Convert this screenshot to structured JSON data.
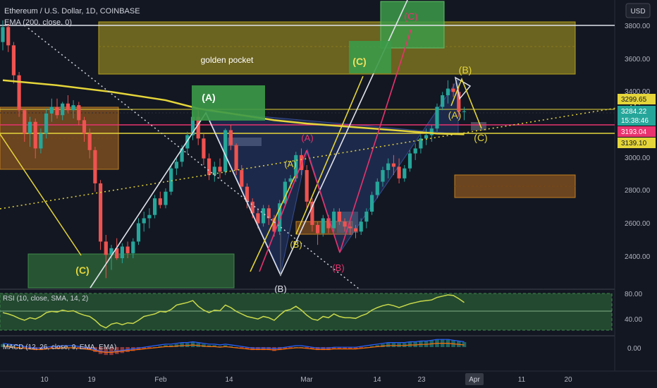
{
  "header": {
    "symbol_title": "Ethereum / U.S. Dollar, 1D, COINBASE",
    "indicator_ema": "EMA (200, close, 0)",
    "currency_button": "USD"
  },
  "colors": {
    "background": "#131722",
    "up": "#26a69a",
    "down": "#ef5350",
    "ema": "#e5d53a",
    "fib_yellow": "#d8c63b"
  },
  "annotations": {
    "golden_pocket": "golden pocket",
    "A_green": "(A)",
    "C_green": "(C)",
    "C_pink_top": "(C)",
    "A_pink": "(A)",
    "A_yellow": "(A)",
    "B_yellow_mid": "(B)",
    "B_pink": "(B)",
    "B_white_bottom": "(B)",
    "C_yellow_left": "(C)",
    "B_yellow_top": "(B)",
    "A_yellow_right": "(A)",
    "C_yellow_right": "(C)"
  },
  "price_axis": {
    "ticks": [
      "3800.00",
      "3600.00",
      "3400.00",
      "3000.00",
      "2800.00",
      "2600.00",
      "2400.00"
    ],
    "badges": {
      "p3299": "3299.65",
      "p3284": "3284.22",
      "countdown": "15:38:46",
      "p3193": "3193.04",
      "p3139": "3139.10"
    }
  },
  "time_axis": [
    "10",
    "19",
    "Feb",
    "14",
    "Mar",
    "14",
    "23",
    "Apr",
    "11",
    "20"
  ],
  "rsi": {
    "label": "RSI (10, close, SMA, 14, 2)",
    "ticks": [
      "80.00",
      "40.00"
    ]
  },
  "macd": {
    "label": "MACD (12, 26, close, 9, EMA, EMA)",
    "ticks": [
      "0.00"
    ]
  },
  "chart_data": {
    "type": "candlestick",
    "title": "Ethereum / U.S. Dollar, 1D, COINBASE",
    "y_axis_range": [
      2250,
      3900
    ],
    "candles": [
      {
        "o": 3700,
        "h": 3830,
        "l": 3650,
        "c": 3790
      },
      {
        "o": 3790,
        "h": 3810,
        "l": 3640,
        "c": 3680
      },
      {
        "o": 3680,
        "h": 3700,
        "l": 3450,
        "c": 3500
      },
      {
        "o": 3500,
        "h": 3520,
        "l": 3250,
        "c": 3290
      },
      {
        "o": 3290,
        "h": 3300,
        "l": 3100,
        "c": 3150
      },
      {
        "o": 3150,
        "h": 3250,
        "l": 3070,
        "c": 3220
      },
      {
        "o": 3220,
        "h": 3240,
        "l": 3000,
        "c": 3060
      },
      {
        "o": 3060,
        "h": 3180,
        "l": 3030,
        "c": 3150
      },
      {
        "o": 3150,
        "h": 3300,
        "l": 3120,
        "c": 3270
      },
      {
        "o": 3270,
        "h": 3360,
        "l": 3220,
        "c": 3310
      },
      {
        "o": 3310,
        "h": 3360,
        "l": 3240,
        "c": 3260
      },
      {
        "o": 3260,
        "h": 3340,
        "l": 3230,
        "c": 3330
      },
      {
        "o": 3330,
        "h": 3380,
        "l": 3270,
        "c": 3290
      },
      {
        "o": 3290,
        "h": 3350,
        "l": 3240,
        "c": 3320
      },
      {
        "o": 3320,
        "h": 3340,
        "l": 3200,
        "c": 3230
      },
      {
        "o": 3230,
        "h": 3250,
        "l": 3100,
        "c": 3150
      },
      {
        "o": 3150,
        "h": 3180,
        "l": 3000,
        "c": 3050
      },
      {
        "o": 3050,
        "h": 3070,
        "l": 2800,
        "c": 2850
      },
      {
        "o": 2850,
        "h": 2870,
        "l": 2450,
        "c": 2500
      },
      {
        "o": 2500,
        "h": 2540,
        "l": 2280,
        "c": 2420
      },
      {
        "o": 2420,
        "h": 2480,
        "l": 2330,
        "c": 2460
      },
      {
        "o": 2460,
        "h": 2520,
        "l": 2390,
        "c": 2400
      },
      {
        "o": 2400,
        "h": 2490,
        "l": 2370,
        "c": 2470
      },
      {
        "o": 2470,
        "h": 2500,
        "l": 2400,
        "c": 2430
      },
      {
        "o": 2430,
        "h": 2520,
        "l": 2400,
        "c": 2500
      },
      {
        "o": 2500,
        "h": 2640,
        "l": 2480,
        "c": 2610
      },
      {
        "o": 2610,
        "h": 2680,
        "l": 2560,
        "c": 2640
      },
      {
        "o": 2640,
        "h": 2700,
        "l": 2580,
        "c": 2660
      },
      {
        "o": 2660,
        "h": 2780,
        "l": 2640,
        "c": 2760
      },
      {
        "o": 2760,
        "h": 2800,
        "l": 2700,
        "c": 2720
      },
      {
        "o": 2720,
        "h": 2820,
        "l": 2700,
        "c": 2800
      },
      {
        "o": 2800,
        "h": 2960,
        "l": 2780,
        "c": 2940
      },
      {
        "o": 2940,
        "h": 3000,
        "l": 2900,
        "c": 2980
      },
      {
        "o": 2980,
        "h": 3080,
        "l": 2950,
        "c": 3060
      },
      {
        "o": 3060,
        "h": 3160,
        "l": 3030,
        "c": 3140
      },
      {
        "o": 3140,
        "h": 3280,
        "l": 3110,
        "c": 3250
      },
      {
        "o": 3250,
        "h": 3290,
        "l": 3080,
        "c": 3120
      },
      {
        "o": 3120,
        "h": 3150,
        "l": 2960,
        "c": 3000
      },
      {
        "o": 3000,
        "h": 3030,
        "l": 2870,
        "c": 2900
      },
      {
        "o": 2900,
        "h": 2980,
        "l": 2860,
        "c": 2950
      },
      {
        "o": 2950,
        "h": 3000,
        "l": 2880,
        "c": 2920
      },
      {
        "o": 2920,
        "h": 3180,
        "l": 2900,
        "c": 3170
      },
      {
        "o": 3170,
        "h": 3200,
        "l": 3050,
        "c": 3080
      },
      {
        "o": 3080,
        "h": 3090,
        "l": 2900,
        "c": 2930
      },
      {
        "o": 2930,
        "h": 2960,
        "l": 2800,
        "c": 2830
      },
      {
        "o": 2830,
        "h": 2850,
        "l": 2700,
        "c": 2740
      },
      {
        "o": 2740,
        "h": 2760,
        "l": 2640,
        "c": 2670
      },
      {
        "o": 2670,
        "h": 2700,
        "l": 2580,
        "c": 2610
      },
      {
        "o": 2610,
        "h": 2720,
        "l": 2590,
        "c": 2700
      },
      {
        "o": 2700,
        "h": 2720,
        "l": 2600,
        "c": 2640
      },
      {
        "o": 2640,
        "h": 2660,
        "l": 2530,
        "c": 2560
      },
      {
        "o": 2560,
        "h": 2750,
        "l": 2540,
        "c": 2730
      },
      {
        "o": 2730,
        "h": 2880,
        "l": 2710,
        "c": 2860
      },
      {
        "o": 2860,
        "h": 2900,
        "l": 2820,
        "c": 2880
      },
      {
        "o": 2880,
        "h": 3040,
        "l": 2860,
        "c": 3020
      },
      {
        "o": 3020,
        "h": 3060,
        "l": 2900,
        "c": 2930
      },
      {
        "o": 2930,
        "h": 2960,
        "l": 2700,
        "c": 2740
      },
      {
        "o": 2740,
        "h": 2760,
        "l": 2560,
        "c": 2600
      },
      {
        "o": 2600,
        "h": 2620,
        "l": 2480,
        "c": 2550
      },
      {
        "o": 2550,
        "h": 2660,
        "l": 2530,
        "c": 2640
      },
      {
        "o": 2640,
        "h": 2660,
        "l": 2550,
        "c": 2580
      },
      {
        "o": 2580,
        "h": 2700,
        "l": 2560,
        "c": 2680
      },
      {
        "o": 2680,
        "h": 2700,
        "l": 2600,
        "c": 2620
      },
      {
        "o": 2620,
        "h": 2640,
        "l": 2560,
        "c": 2590
      },
      {
        "o": 2590,
        "h": 2620,
        "l": 2540,
        "c": 2580
      },
      {
        "o": 2580,
        "h": 2600,
        "l": 2520,
        "c": 2560
      },
      {
        "o": 2560,
        "h": 2640,
        "l": 2540,
        "c": 2620
      },
      {
        "o": 2620,
        "h": 2700,
        "l": 2580,
        "c": 2680
      },
      {
        "o": 2680,
        "h": 2800,
        "l": 2660,
        "c": 2780
      },
      {
        "o": 2780,
        "h": 2880,
        "l": 2760,
        "c": 2860
      },
      {
        "o": 2860,
        "h": 2950,
        "l": 2830,
        "c": 2930
      },
      {
        "o": 2930,
        "h": 3000,
        "l": 2880,
        "c": 2970
      },
      {
        "o": 2970,
        "h": 3020,
        "l": 2900,
        "c": 2950
      },
      {
        "o": 2950,
        "h": 3000,
        "l": 2850,
        "c": 2880
      },
      {
        "o": 2880,
        "h": 2960,
        "l": 2860,
        "c": 2940
      },
      {
        "o": 2940,
        "h": 3050,
        "l": 2920,
        "c": 3030
      },
      {
        "o": 3030,
        "h": 3090,
        "l": 2990,
        "c": 3060
      },
      {
        "o": 3060,
        "h": 3140,
        "l": 3030,
        "c": 3120
      },
      {
        "o": 3120,
        "h": 3180,
        "l": 3080,
        "c": 3140
      },
      {
        "o": 3140,
        "h": 3200,
        "l": 3100,
        "c": 3180
      },
      {
        "o": 3180,
        "h": 3330,
        "l": 3160,
        "c": 3310
      },
      {
        "o": 3310,
        "h": 3400,
        "l": 3290,
        "c": 3380
      },
      {
        "o": 3380,
        "h": 3470,
        "l": 3330,
        "c": 3420
      },
      {
        "o": 3420,
        "h": 3450,
        "l": 3370,
        "c": 3400
      },
      {
        "o": 3400,
        "h": 3440,
        "l": 3250,
        "c": 3280
      },
      {
        "o": 3280,
        "h": 3310,
        "l": 3230,
        "c": 3284
      }
    ],
    "ema_200": [
      [
        0,
        3470
      ],
      [
        10,
        3440
      ],
      [
        20,
        3400
      ],
      [
        30,
        3350
      ],
      [
        36,
        3300
      ],
      [
        44,
        3260
      ],
      [
        50,
        3230
      ],
      [
        56,
        3210
      ],
      [
        64,
        3190
      ],
      [
        72,
        3170
      ],
      [
        80,
        3150
      ],
      [
        85,
        3145
      ]
    ],
    "rsi_values": [
      52,
      50,
      47,
      43,
      40,
      44,
      42,
      46,
      52,
      54,
      53,
      56,
      54,
      55,
      51,
      48,
      46,
      40,
      32,
      28,
      34,
      36,
      33,
      36,
      35,
      40,
      46,
      48,
      50,
      54,
      53,
      57,
      64,
      66,
      68,
      71,
      62,
      56,
      52,
      56,
      55,
      64,
      60,
      54,
      50,
      46,
      44,
      42,
      46,
      44,
      40,
      48,
      55,
      57,
      62,
      56,
      48,
      42,
      40,
      46,
      44,
      50,
      46,
      44,
      44,
      43,
      47,
      50,
      56,
      60,
      63,
      65,
      63,
      60,
      63,
      66,
      68,
      70,
      71,
      72,
      76,
      78,
      80,
      79,
      74,
      68
    ],
    "macd_hist": [
      3,
      2,
      1,
      0,
      -1,
      -2,
      -3,
      -3,
      -2,
      -1,
      -1,
      0,
      0,
      0,
      -1,
      -2,
      -3,
      -5,
      -7,
      -8,
      -8,
      -7,
      -6,
      -5,
      -4,
      -3,
      -2,
      -1,
      0,
      1,
      2,
      2,
      3,
      4,
      4,
      5,
      4,
      3,
      2,
      2,
      1,
      2,
      1,
      0,
      -1,
      -2,
      -3,
      -3,
      -3,
      -3,
      -4,
      -3,
      -2,
      -1,
      0,
      0,
      -1,
      -2,
      -3,
      -3,
      -3,
      -2,
      -2,
      -2,
      -2,
      -2,
      -1,
      0,
      1,
      2,
      3,
      4,
      4,
      4,
      4,
      5,
      5,
      6,
      6,
      7,
      8,
      8,
      8,
      7,
      6,
      5
    ]
  }
}
